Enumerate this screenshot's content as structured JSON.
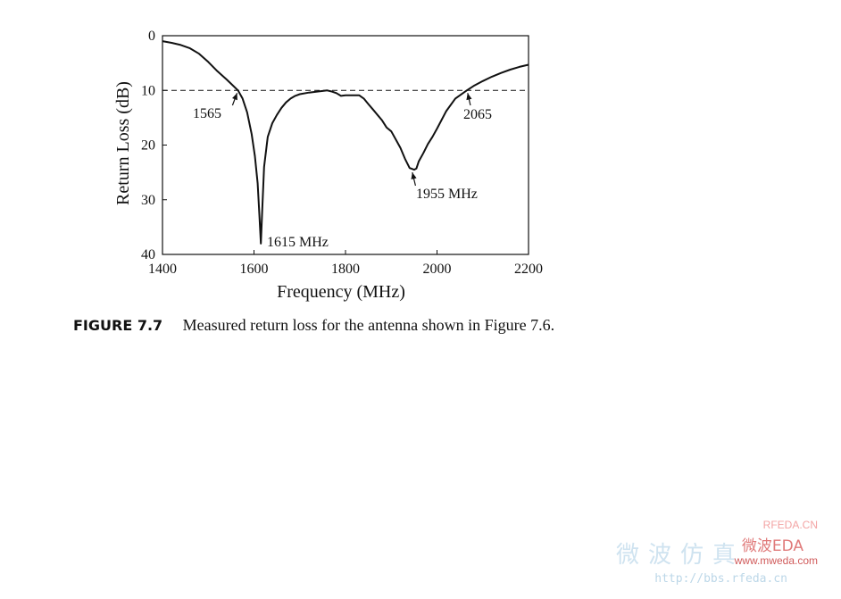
{
  "chart_data": {
    "type": "line",
    "title": "",
    "xlabel": "Frequency (MHz)",
    "ylabel": "Return Loss (dB)",
    "xlim": [
      1400,
      2200
    ],
    "ylim": [
      0,
      40
    ],
    "y_inverted": true,
    "xticks": [
      1400,
      1600,
      1800,
      2000,
      2200
    ],
    "yticks": [
      0,
      10,
      20,
      30,
      40
    ],
    "grid": false,
    "reference_line": {
      "y": 10,
      "style": "dashed"
    },
    "series": [
      {
        "x": [
          1400,
          1420,
          1440,
          1460,
          1480,
          1500,
          1520,
          1540,
          1550,
          1565,
          1575,
          1585,
          1595,
          1602,
          1608,
          1612,
          1615,
          1618,
          1622,
          1630,
          1640,
          1650,
          1660,
          1670,
          1680,
          1690,
          1700,
          1720,
          1740,
          1760,
          1770,
          1780,
          1790,
          1800,
          1810,
          1820,
          1830,
          1840,
          1850,
          1860,
          1870,
          1880,
          1890,
          1900,
          1910,
          1920,
          1930,
          1940,
          1950,
          1955,
          1960,
          1970,
          1980,
          1990,
          2000,
          2020,
          2040,
          2065,
          2080,
          2100,
          2120,
          2140,
          2160,
          2180,
          2200
        ],
        "y": [
          1.0,
          1.3,
          1.7,
          2.3,
          3.3,
          4.8,
          6.5,
          8.0,
          8.8,
          10.0,
          11.5,
          14.0,
          18.0,
          22.0,
          27.0,
          33.0,
          38.0,
          32.0,
          24.0,
          18.5,
          16.0,
          14.5,
          13.2,
          12.2,
          11.5,
          11.0,
          10.7,
          10.4,
          10.2,
          10.0,
          10.2,
          10.5,
          11.0,
          10.9,
          10.9,
          10.9,
          10.9,
          11.5,
          12.5,
          13.5,
          14.5,
          15.5,
          16.8,
          17.5,
          19.0,
          20.5,
          22.5,
          24.2,
          24.5,
          24.3,
          23.0,
          21.5,
          19.8,
          18.5,
          17.0,
          13.8,
          11.5,
          10.0,
          9.2,
          8.3,
          7.5,
          6.8,
          6.2,
          5.7,
          5.3
        ]
      }
    ],
    "annotations": [
      {
        "text": "1565",
        "x": 1565,
        "y": 10
      },
      {
        "text": "1615 MHz",
        "x": 1615,
        "y": 38
      },
      {
        "text": "1955 MHz",
        "x": 1950,
        "y": 24.5
      },
      {
        "text": "2065",
        "x": 2065,
        "y": 10
      }
    ]
  },
  "caption": {
    "number": "FIGURE 7.7",
    "text": "Measured return loss for the antenna shown in Figure 7.6."
  },
  "watermark": {
    "top": "RFEDA.CN",
    "cn": "微波仿真",
    "cn2": "微波EDA",
    "site": "www.mweda.com",
    "url": "http://bbs.rfeda.cn"
  }
}
